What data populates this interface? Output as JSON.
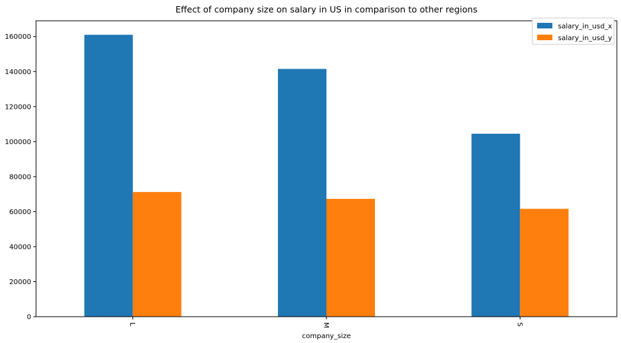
{
  "chart_data": {
    "type": "bar",
    "title": "Effect of company size on salary in US in comparison to other regions",
    "xlabel": "company_size",
    "ylabel": "",
    "categories": [
      "L",
      "M",
      "S"
    ],
    "series": [
      {
        "name": "salary_in_usd_x",
        "color": "#1f77b4",
        "values": [
          161000,
          141500,
          104500
        ]
      },
      {
        "name": "salary_in_usd_y",
        "color": "#ff7f0e",
        "values": [
          71200,
          67300,
          61600
        ]
      }
    ],
    "yticks": [
      0,
      20000,
      40000,
      60000,
      80000,
      100000,
      120000,
      140000,
      160000
    ],
    "ylim": [
      0,
      169000
    ],
    "grid": false,
    "legend_position": "top-right"
  }
}
